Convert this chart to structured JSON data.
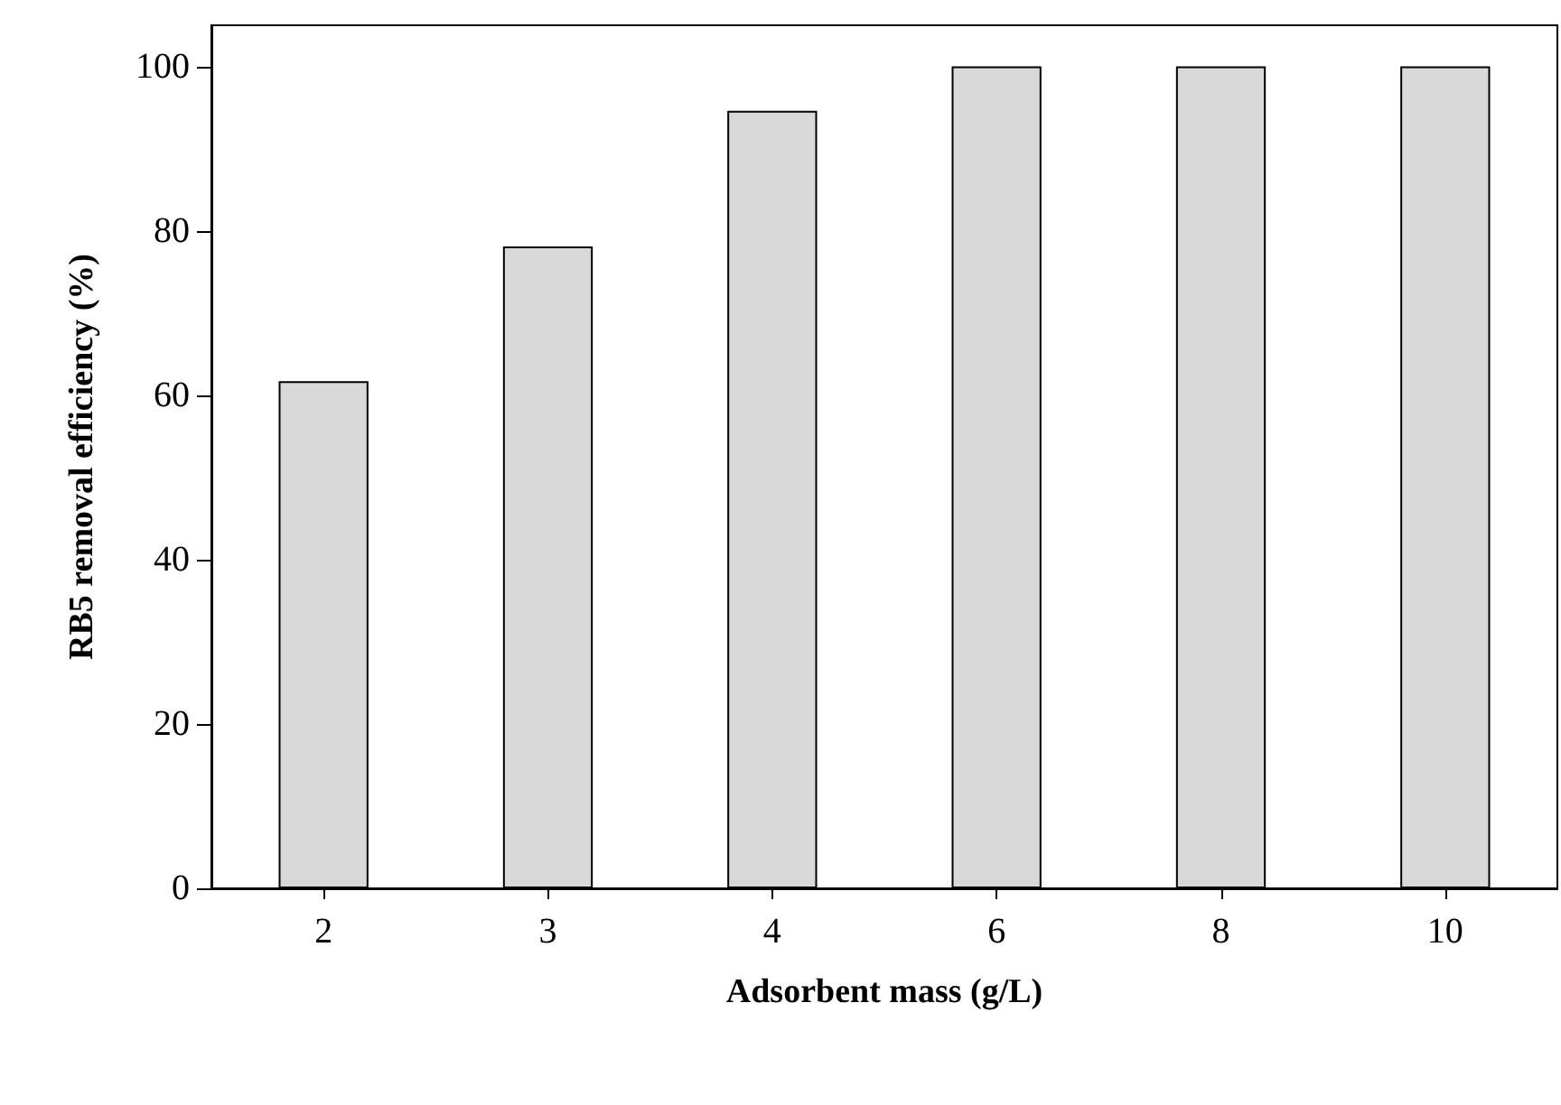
{
  "chart_data": {
    "type": "bar",
    "xlabel": "Adsorbent mass (g/L)",
    "ylabel": "RB5 removal efficiency (%)",
    "categories": [
      "2",
      "3",
      "4",
      "6",
      "8",
      "10"
    ],
    "values": [
      61.7,
      78.1,
      94.6,
      100,
      100,
      100
    ],
    "color": "#d9d9d9",
    "ylim": [
      0,
      105
    ],
    "yticks": [
      0,
      20,
      40,
      60,
      80,
      100
    ],
    "grid": false
  }
}
